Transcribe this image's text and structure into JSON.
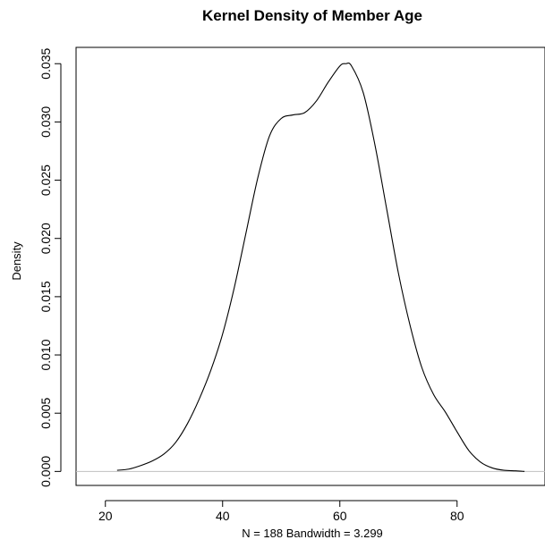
{
  "chart_data": {
    "type": "line",
    "title": "Kernel Density of Member Age",
    "xlabel": "N = 188   Bandwidth = 3.299",
    "ylabel": "Density",
    "xlim": [
      15,
      95
    ],
    "ylim": [
      -0.0012,
      0.0364
    ],
    "x_ticks": [
      20,
      40,
      60,
      80
    ],
    "x_tick_labels": [
      "20",
      "40",
      "60",
      "80"
    ],
    "y_ticks": [
      0,
      0.005,
      0.01,
      0.015,
      0.02,
      0.025,
      0.03,
      0.035
    ],
    "y_tick_labels": [
      "0.000",
      "0.005",
      "0.010",
      "0.015",
      "0.020",
      "0.025",
      "0.030",
      "0.035"
    ],
    "grid": false,
    "baseline": {
      "y": 0,
      "color": "#c0c0c0"
    },
    "line_color": "#000000",
    "series": [
      {
        "x": [
          22,
          24,
          26,
          28,
          30,
          32,
          34,
          36,
          38,
          40,
          42,
          44,
          46,
          48,
          50,
          52,
          54,
          56,
          58,
          60,
          61,
          62,
          64,
          66,
          68,
          70,
          72,
          74,
          76,
          78,
          80,
          82,
          84,
          86,
          88,
          90,
          91.5
        ],
        "y": [
          0.0001,
          0.0002,
          0.0005,
          0.0009,
          0.0015,
          0.0025,
          0.0041,
          0.0062,
          0.0087,
          0.0118,
          0.0158,
          0.0205,
          0.0252,
          0.0288,
          0.0303,
          0.0306,
          0.0308,
          0.0318,
          0.0334,
          0.0348,
          0.035,
          0.0348,
          0.0325,
          0.028,
          0.0225,
          0.017,
          0.0125,
          0.0089,
          0.0066,
          0.0051,
          0.0034,
          0.0018,
          0.0008,
          0.0003,
          0.0001,
          5e-05,
          0.0
        ]
      }
    ]
  }
}
